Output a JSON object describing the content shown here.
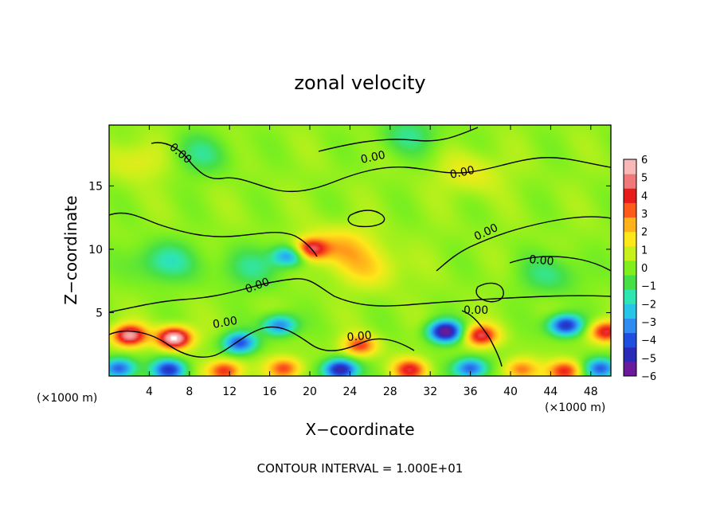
{
  "chart_data": {
    "type": "heatmap",
    "title": "zonal velocity",
    "xlabel": "X−coordinate",
    "ylabel": "Z−coordinate",
    "x_unit_left": "(×1000 m)",
    "x_unit_right": "(×1000 m)",
    "footer": "CONTOUR INTERVAL = 1.000E+01",
    "xlim": [
      0,
      50
    ],
    "ylim": [
      0,
      19.8
    ],
    "x_ticks": [
      4,
      8,
      12,
      16,
      20,
      24,
      28,
      32,
      36,
      40,
      44,
      48
    ],
    "y_ticks": [
      5,
      10,
      15
    ],
    "colorbar": {
      "min": -6,
      "max": 6,
      "tick_labels": [
        "6",
        "5",
        "4",
        "3",
        "2",
        "1",
        "0",
        "−1",
        "−2",
        "−3",
        "−4",
        "−5",
        "−6"
      ],
      "colors": [
        "#6a1a9a",
        "#2a2ab8",
        "#1f4fe0",
        "#2f8cf0",
        "#27c5e8",
        "#2ee6b0",
        "#46e046",
        "#7ff01e",
        "#c8f01a",
        "#ffe81a",
        "#ffb21a",
        "#ff5a1a",
        "#e81a1a",
        "#f07878",
        "#f8b8b8"
      ]
    },
    "contour_labels": [
      "0.00",
      "0.00",
      "0.00",
      "0.00",
      "0.00",
      "0.00",
      "0.00",
      "0.00",
      "0.00"
    ],
    "features": [
      {
        "x": 2.0,
        "z": 3.2,
        "value": 5.5
      },
      {
        "x": 6.5,
        "z": 3.0,
        "value": 6.5
      },
      {
        "x": 13.0,
        "z": 2.6,
        "value": -4.5
      },
      {
        "x": 17.0,
        "z": 4.0,
        "value": -4.0
      },
      {
        "x": 20.0,
        "z": 10.0,
        "value": 4.5
      },
      {
        "x": 18.0,
        "z": 9.5,
        "value": -4.0
      },
      {
        "x": 25.0,
        "z": 2.4,
        "value": 3.5
      },
      {
        "x": 33.5,
        "z": 3.5,
        "value": -6.5
      },
      {
        "x": 37.0,
        "z": 3.2,
        "value": 4.5
      },
      {
        "x": 45.5,
        "z": 4.0,
        "value": -5.5
      },
      {
        "x": 49.5,
        "z": 3.5,
        "value": 4.5
      },
      {
        "x": 1.0,
        "z": 0.6,
        "value": -4.5
      },
      {
        "x": 6.0,
        "z": 0.5,
        "value": -5.0
      },
      {
        "x": 11.5,
        "z": 0.4,
        "value": 4.0
      },
      {
        "x": 17.5,
        "z": 0.6,
        "value": 3.5
      },
      {
        "x": 23.0,
        "z": 0.5,
        "value": -6.0
      },
      {
        "x": 30.0,
        "z": 0.5,
        "value": 4.0
      },
      {
        "x": 36.0,
        "z": 0.6,
        "value": -4.5
      },
      {
        "x": 41.0,
        "z": 0.5,
        "value": 3.0
      },
      {
        "x": 45.5,
        "z": 0.4,
        "value": 4.0
      },
      {
        "x": 49.0,
        "z": 0.6,
        "value": -4.5
      },
      {
        "x": 5.5,
        "z": 9.0,
        "value": -2.0
      },
      {
        "x": 14.0,
        "z": 8.5,
        "value": -1.5
      },
      {
        "x": 23.0,
        "z": 10.2,
        "value": 2.0
      },
      {
        "x": 26.0,
        "z": 8.5,
        "value": 1.5
      },
      {
        "x": 9.0,
        "z": 17.5,
        "value": -1.5
      },
      {
        "x": 30.0,
        "z": 19.0,
        "value": -1.5
      },
      {
        "x": 44.0,
        "z": 8.0,
        "value": -1.5
      },
      {
        "x": 3.0,
        "z": 17.0,
        "value": 1.2
      },
      {
        "x": 36.0,
        "z": 16.0,
        "value": 1.2
      }
    ]
  }
}
